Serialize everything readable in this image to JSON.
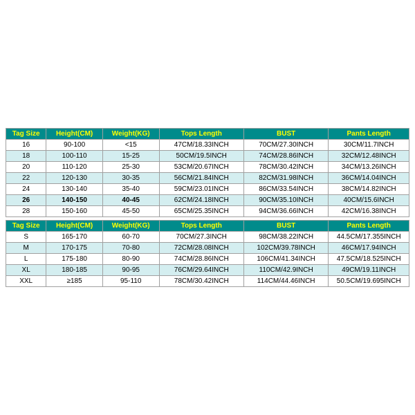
{
  "header_bg": "#008b8b",
  "header_fg": "#ffff00",
  "highlight_bg": "#d4eef0",
  "border_color": "#a0a0a0",
  "columns": [
    "Tag Size",
    "Height(CM)",
    "Weight(KG)",
    "Tops Length",
    "BUST",
    "Pants Length"
  ],
  "table1": {
    "rows": [
      {
        "cells": [
          "16",
          "90-100",
          "<15",
          "47CM/18.33INCH",
          "70CM/27.30INCH",
          "30CM/11.7INCH"
        ],
        "hl": false
      },
      {
        "cells": [
          "18",
          "100-110",
          "15-25",
          "50CM/19.5INCH",
          "74CM/28.86INCH",
          "32CM/12.48INCH"
        ],
        "hl": true
      },
      {
        "cells": [
          "20",
          "110-120",
          "25-30",
          "53CM/20.67INCH",
          "78CM/30.42INCH",
          "34CM/13.26INCH"
        ],
        "hl": false
      },
      {
        "cells": [
          "22",
          "120-130",
          "30-35",
          "56CM/21.84INCH",
          "82CM/31.98INCH",
          "36CM/14.04INCH"
        ],
        "hl": true
      },
      {
        "cells": [
          "24",
          "130-140",
          "35-40",
          "59CM/23.01INCH",
          "86CM/33.54INCH",
          "38CM/14.82INCH"
        ],
        "hl": false
      },
      {
        "cells": [
          "26",
          "140-150",
          "40-45",
          "62CM/24.18INCH",
          "90CM/35.10INCH",
          "40CM/15.6INCH"
        ],
        "hl": true,
        "bold": true
      },
      {
        "cells": [
          "28",
          "150-160",
          "45-50",
          "65CM/25.35INCH",
          "94CM/36.66INCH",
          "42CM/16.38INCH"
        ],
        "hl": false
      }
    ]
  },
  "table2": {
    "rows": [
      {
        "cells": [
          "S",
          "165-170",
          "60-70",
          "70CM/27.3INCH",
          "98CM/38.22INCH",
          "44.5CM/17.355INCH"
        ],
        "hl": false
      },
      {
        "cells": [
          "M",
          "170-175",
          "70-80",
          "72CM/28.08INCH",
          "102CM/39.78INCH",
          "46CM/17.94INCH"
        ],
        "hl": true
      },
      {
        "cells": [
          "L",
          "175-180",
          "80-90",
          "74CM/28.86INCH",
          "106CM/41.34INCH",
          "47.5CM/18.525INCH"
        ],
        "hl": false
      },
      {
        "cells": [
          "XL",
          "180-185",
          "90-95",
          "76CM/29.64INCH",
          "110CM/42.9INCH",
          "49CM/19.11INCH"
        ],
        "hl": true
      },
      {
        "cells": [
          "XXL",
          "≥185",
          "95-110",
          "78CM/30.42INCH",
          "114CM/44.46INCH",
          "50.5CM/19.695INCH"
        ],
        "hl": false
      }
    ]
  }
}
